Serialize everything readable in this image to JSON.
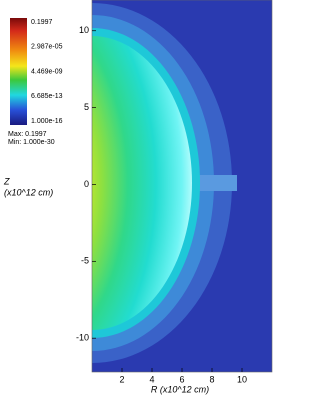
{
  "chart_data": {
    "type": "pseudocolor",
    "colorbar": {
      "labels": [
        "0.1997",
        "2.987e-05",
        "4.469e-09",
        "6.685e-13",
        "1.000e-16"
      ],
      "max_label": "Max: 0.1997",
      "min_label": "Min: 1.000e-30"
    },
    "xlabel": "R (x10^12 cm)",
    "ylabel": [
      "Z",
      "(x10^12 cm)"
    ],
    "xlim": [
      0,
      12
    ],
    "ylim": [
      -12.2,
      12
    ],
    "xticks": [
      2,
      4,
      6,
      8,
      10
    ],
    "yticks": [
      -10,
      -5,
      0,
      5,
      10
    ]
  }
}
